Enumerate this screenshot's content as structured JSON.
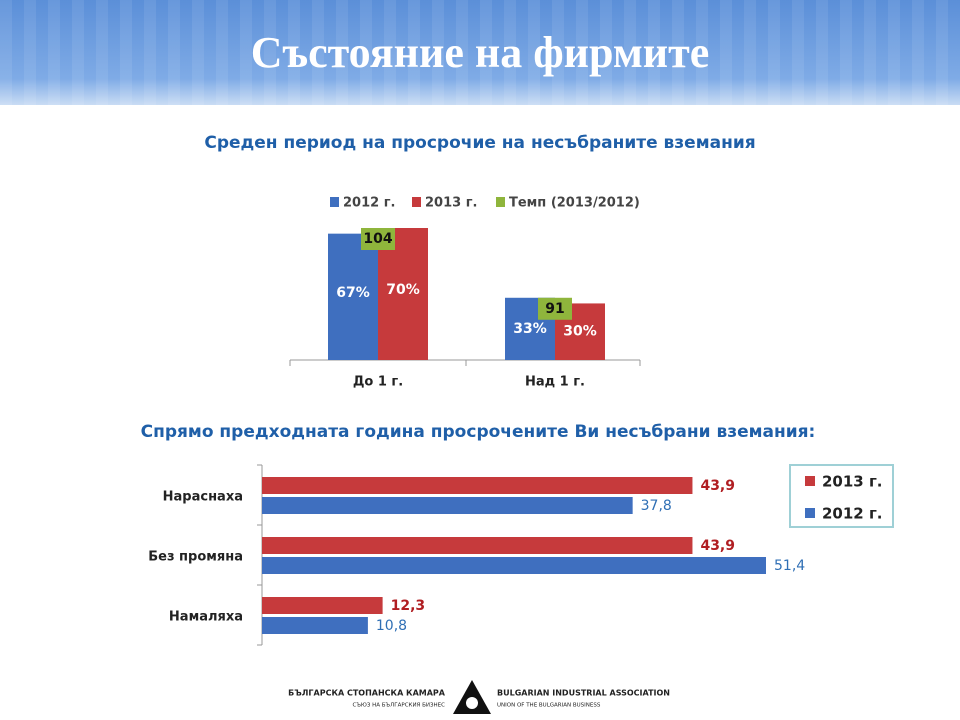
{
  "title": "Състояние на фирмите",
  "chart_data": [
    {
      "type": "bar",
      "title": "Среден период на просрочие на несъбраните вземания",
      "categories": [
        "До 1 г.",
        "Над 1 г."
      ],
      "series": [
        {
          "name": "2012 г.",
          "color": "#3f6fbf",
          "values": [
            67,
            33
          ],
          "value_labels": [
            "67%",
            "33%"
          ]
        },
        {
          "name": "2013 г.",
          "color": "#c63a3c",
          "values": [
            70,
            30
          ],
          "value_labels": [
            "70%",
            "30%"
          ]
        },
        {
          "name": "Темп (2013/2012)",
          "color": "#8fb53c",
          "values": [
            104,
            91
          ]
        }
      ]
    },
    {
      "type": "hbar",
      "title": "Спрямо предходната година просрочените Ви несъбрани вземания:",
      "categories": [
        "Нараснаха",
        "Без промяна",
        "Намаляха"
      ],
      "series": [
        {
          "name": "2013 г.",
          "color": "#c63a3c",
          "values": [
            43.9,
            43.9,
            12.3
          ],
          "value_labels": [
            "43,9",
            "43,9",
            "12,3"
          ]
        },
        {
          "name": "2012 г.",
          "color": "#3f6fbf",
          "values": [
            37.8,
            51.4,
            10.8
          ],
          "value_labels": [
            "37,8",
            "51,4",
            "10,8"
          ]
        }
      ]
    }
  ],
  "footer": {
    "org_bg": "БЪЛГАРСКА СТОПАНСКА КАМАРА",
    "org_bg_sub": "СЪЮЗ НА БЪЛГАРСКИЯ БИЗНЕС",
    "org_en": "BULGARIAN INDUSTRIAL ASSOCIATION",
    "org_en_sub": "UNION OF THE BULGARIAN BUSINESS"
  }
}
